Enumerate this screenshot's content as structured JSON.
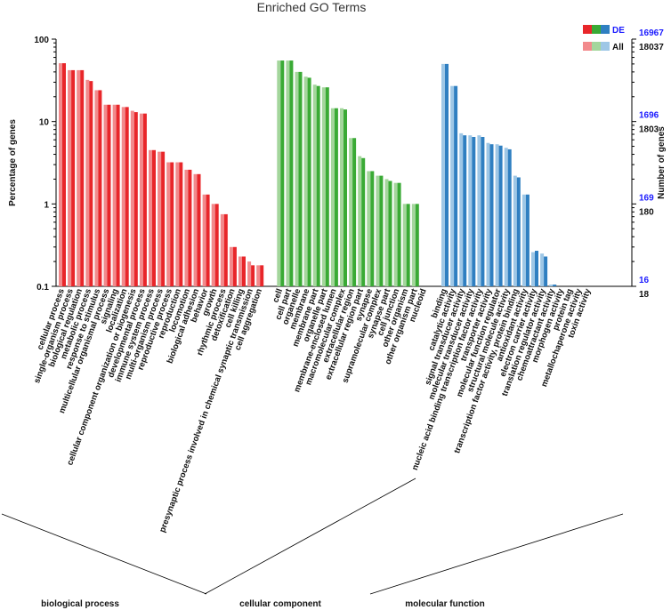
{
  "chart_data": {
    "type": "bar",
    "title": "Enriched GO Terms",
    "ylabel_left": "Percentage of genes",
    "ylabel_right": "Number of genes",
    "yscale": "log",
    "ylim": [
      0.1,
      100
    ],
    "left_ticks": [
      "100",
      "10",
      "1",
      "0.1"
    ],
    "right_ticks_de": [
      "16967",
      "1696",
      "169",
      "16"
    ],
    "right_ticks_all": [
      "18037",
      "1803",
      "180",
      "18"
    ],
    "legend": {
      "de_label": "DE",
      "all_label": "All"
    },
    "colors": {
      "bp": [
        "#e8262a",
        "#f28a8c"
      ],
      "cc": [
        "#3aaa35",
        "#a4d69c"
      ],
      "mf": [
        "#2f7fc1",
        "#9ec7e6"
      ],
      "de_blue_text": "#1a1aff"
    },
    "groups": [
      {
        "name": "biological process",
        "color_key": "bp",
        "categories": [
          "cellular process",
          "single-organism process",
          "biological regulation",
          "metabolic process",
          "response to stimulus",
          "multicellular organismal process",
          "signaling",
          "localization",
          "cellular component organization or biogenesis",
          "developmental process",
          "immune system process",
          "multi-organism process",
          "reproductive process",
          "reproduction",
          "locomotion",
          "biological adhesion",
          "behavior",
          "growth",
          "rhythmic process",
          "detoxification",
          "cell killing",
          "presynaptic process involved in chemical synaptic transmission",
          "cell aggregation"
        ],
        "series": [
          {
            "name": "All",
            "values": [
              51,
              42,
              42,
              32,
              24,
              16,
              16,
              15,
              13.5,
              12.5,
              4.5,
              4.3,
              3.2,
              3.2,
              2.6,
              2.3,
              1.3,
              1.0,
              0.75,
              0.3,
              0.23,
              0.2,
              0.18
            ]
          },
          {
            "name": "DE",
            "values": [
              51,
              42,
              42,
              31,
              24,
              16,
              16,
              15,
              13,
              12.5,
              4.5,
              4.3,
              3.2,
              3.2,
              2.6,
              2.3,
              1.3,
              1.0,
              0.75,
              0.3,
              0.23,
              0.18,
              0.18
            ]
          }
        ]
      },
      {
        "name": "cellular component",
        "color_key": "cc",
        "categories": [
          "cell",
          "cell part",
          "organelle",
          "membrane",
          "membrane part",
          "organelle part",
          "membrane-enclosed lumen",
          "macromolecular complex",
          "extracellular region",
          "extracellular region part",
          "synapse",
          "supramolecular complex",
          "synapse part",
          "cell junction",
          "other organism",
          "other organism part",
          "nucleoid"
        ],
        "series": [
          {
            "name": "All",
            "values": [
              55,
              55,
              40,
              35,
              28,
              26,
              14.5,
              14.5,
              6.3,
              3.8,
              2.5,
              2.2,
              2.0,
              1.8,
              1.0,
              1.0,
              0
            ]
          },
          {
            "name": "DE",
            "values": [
              55,
              55,
              40,
              34,
              27,
              26,
              14.5,
              14,
              6.3,
              3.6,
              2.5,
              2.2,
              1.9,
              1.8,
              1.0,
              1.0,
              0
            ]
          }
        ]
      },
      {
        "name": "molecular function",
        "color_key": "mf",
        "categories": [
          "binding",
          "catalytic activity",
          "signal transducer activity",
          "molecular transducer activity",
          "nucleic acid binding transcription factor activity",
          "transporter activity",
          "molecular function regulator",
          "structural molecule activity",
          "transcription factor activity, protein binding",
          "antioxidant activity",
          "electron carrier activity",
          "translation regulator activity",
          "chemoattractant activity",
          "morphogen activity",
          "protein tag",
          "metallochaperone activity",
          "toxin activity"
        ],
        "series": [
          {
            "name": "All",
            "values": [
              50,
              27,
              7.2,
              6.8,
              6.8,
              5.5,
              5.3,
              4.8,
              2.2,
              1.3,
              0.26,
              0.25,
              0.1,
              0,
              0,
              0,
              0
            ]
          },
          {
            "name": "DE",
            "values": [
              50,
              27,
              6.8,
              6.5,
              6.5,
              5.3,
              5.1,
              4.6,
              2.1,
              1.3,
              0.27,
              0.23,
              0.1,
              0,
              0,
              0,
              0
            ]
          }
        ]
      }
    ]
  }
}
